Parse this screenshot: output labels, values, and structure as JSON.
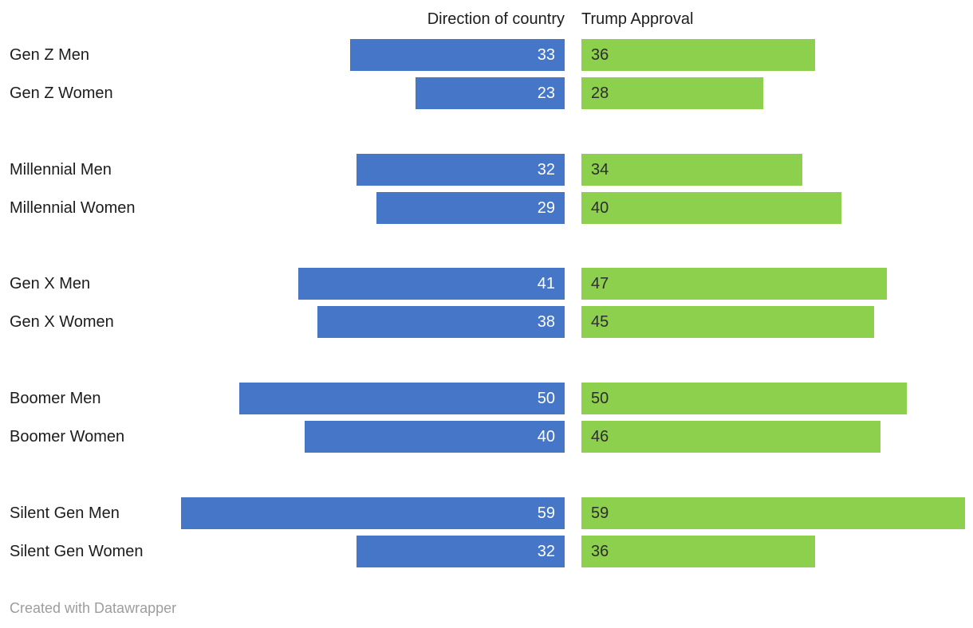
{
  "footer": {
    "attribution": "Created with Datawrapper"
  },
  "chart_data": {
    "type": "bar",
    "variant": "paired-horizontal-bars",
    "title": "",
    "columns": [
      "Direction of country",
      "Trump Approval"
    ],
    "categories": [
      "Gen Z Men",
      "Gen Z Women",
      "Millennial Men",
      "Millennial Women",
      "Gen X Men",
      "Gen X Women",
      "Boomer Men",
      "Boomer Women",
      "Silent Gen Men",
      "Silent Gen Women"
    ],
    "groups": [
      [
        "Gen Z Men",
        "Gen Z Women"
      ],
      [
        "Millennial Men",
        "Millennial Women"
      ],
      [
        "Gen X Men",
        "Gen X Women"
      ],
      [
        "Boomer Men",
        "Boomer Women"
      ],
      [
        "Silent Gen Men",
        "Silent Gen Women"
      ]
    ],
    "series": [
      {
        "name": "Direction of country",
        "color": "#4676c8",
        "label_color": "#ffffff",
        "values": [
          33,
          23,
          32,
          29,
          41,
          38,
          50,
          40,
          59,
          32
        ]
      },
      {
        "name": "Trump Approval",
        "color": "#8dd04e",
        "label_color": "#2d2d2d",
        "values": [
          36,
          28,
          34,
          40,
          47,
          45,
          50,
          46,
          59,
          36
        ]
      }
    ],
    "xlim": [
      0,
      59
    ],
    "value_labels": true,
    "grid": false,
    "legend_position": "column-headers"
  }
}
